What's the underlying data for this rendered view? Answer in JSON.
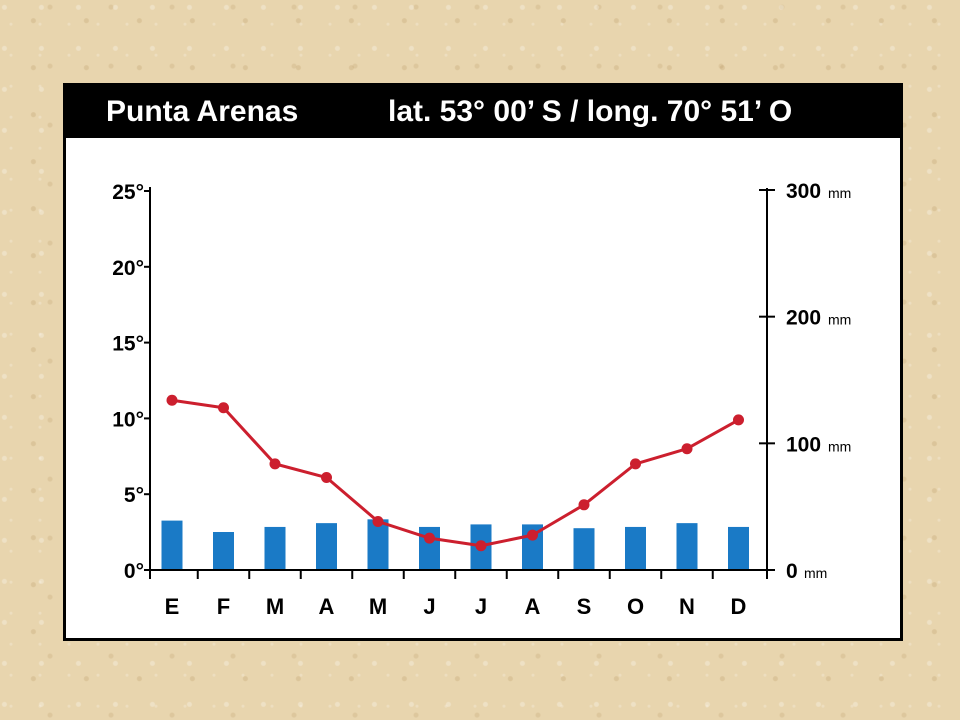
{
  "title": {
    "place": "Punta Arenas",
    "coords": "lat. 53° 00’ S / long. 70° 51’ O"
  },
  "colors": {
    "background": "#e8d5ae",
    "bars": "#1a7ac6",
    "line": "#cc1f2e",
    "axis": "#000000",
    "title_bar": "#000000"
  },
  "chart_data": {
    "type": "bar+line",
    "categories": [
      "E",
      "F",
      "M",
      "A",
      "M",
      "J",
      "J",
      "A",
      "S",
      "O",
      "N",
      "D"
    ],
    "series": [
      {
        "type": "bar",
        "axis": "right",
        "values": [
          39,
          30,
          34,
          37,
          40,
          34,
          36,
          36,
          33,
          34,
          37,
          34
        ]
      },
      {
        "type": "line",
        "axis": "left",
        "values": [
          11.2,
          10.7,
          7.0,
          6.1,
          3.2,
          2.1,
          1.6,
          2.3,
          4.3,
          7.0,
          8.0,
          9.9
        ]
      }
    ],
    "left_axis": {
      "ylim": [
        0,
        25
      ],
      "ticks": [
        0,
        5,
        10,
        15,
        20,
        25
      ],
      "tick_labels": [
        "0°",
        "5°",
        "10°",
        "15°",
        "20°",
        "25°"
      ]
    },
    "right_axis": {
      "ylim": [
        0,
        300
      ],
      "ticks": [
        0,
        100,
        200,
        300
      ],
      "tick_values": [
        "0",
        "100",
        "200",
        "300"
      ],
      "unit": "mm"
    },
    "grid": false
  }
}
